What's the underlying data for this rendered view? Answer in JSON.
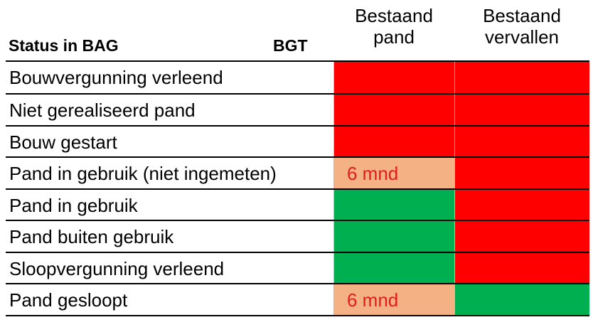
{
  "header": {
    "status_label": "Status in BAG",
    "bgt_label": "BGT",
    "col1_line1": "Bestaand",
    "col1_line2": "pand",
    "col2_line1": "Bestaand",
    "col2_line2": "vervallen"
  },
  "colors": {
    "red": "#ff0000",
    "green": "#00b050",
    "orange": "#f4b183",
    "label_text_in_cell": "#e21b1b"
  },
  "rows": [
    {
      "label": "Bouwvergunning verleend",
      "c1": {
        "color": "#ff0000",
        "text": ""
      },
      "c2": {
        "color": "#ff0000",
        "text": ""
      }
    },
    {
      "label": "Niet gerealiseerd pand",
      "c1": {
        "color": "#ff0000",
        "text": ""
      },
      "c2": {
        "color": "#ff0000",
        "text": ""
      }
    },
    {
      "label": "Bouw gestart",
      "c1": {
        "color": "#ff0000",
        "text": ""
      },
      "c2": {
        "color": "#ff0000",
        "text": ""
      }
    },
    {
      "label": "Pand in gebruik (niet ingemeten)",
      "c1": {
        "color": "#f4b183",
        "text": "6 mnd"
      },
      "c2": {
        "color": "#ff0000",
        "text": ""
      }
    },
    {
      "label": "Pand in gebruik",
      "c1": {
        "color": "#00b050",
        "text": ""
      },
      "c2": {
        "color": "#ff0000",
        "text": ""
      }
    },
    {
      "label": "Pand buiten gebruik",
      "c1": {
        "color": "#00b050",
        "text": ""
      },
      "c2": {
        "color": "#ff0000",
        "text": ""
      }
    },
    {
      "label": "Sloopvergunning verleend",
      "c1": {
        "color": "#00b050",
        "text": ""
      },
      "c2": {
        "color": "#ff0000",
        "text": ""
      }
    },
    {
      "label": "Pand gesloopt",
      "c1": {
        "color": "#f4b183",
        "text": "6 mnd"
      },
      "c2": {
        "color": "#00b050",
        "text": ""
      }
    }
  ]
}
